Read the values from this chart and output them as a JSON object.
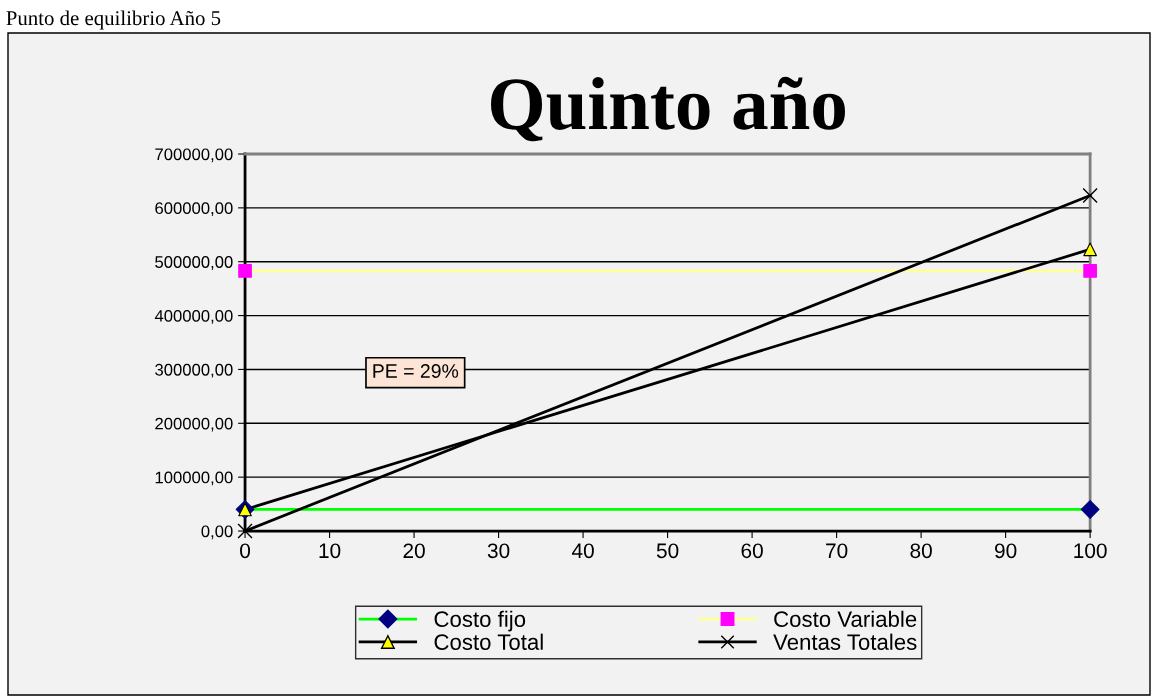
{
  "chart_data": {
    "type": "line",
    "title": "Quinto año",
    "x": [
      0,
      100
    ],
    "series": [
      {
        "name": "Costo fijo",
        "color": "#00ff00",
        "marker": "diamond",
        "colors": [
          "#000080",
          "#000080"
        ],
        "values": [
          40000,
          40000
        ]
      },
      {
        "name": "Costo Variable",
        "color": "#ffff99",
        "marker": "square",
        "colors": [
          "#ff00ff",
          "#ff00ff"
        ],
        "values": [
          483000,
          483000
        ]
      },
      {
        "name": "Costo Total",
        "color": "#000000",
        "marker": "triangle",
        "colors": [
          "#ffff00",
          "#ffff00"
        ],
        "values": [
          40000,
          523000
        ]
      },
      {
        "name": "Ventas Totales",
        "color": "#000000",
        "marker": "cross",
        "colors": [
          "#000000",
          "#000000"
        ],
        "values": [
          0,
          623000
        ]
      }
    ],
    "xlim": [
      0,
      100
    ],
    "xticks": [
      0,
      10,
      20,
      30,
      40,
      50,
      60,
      70,
      80,
      90,
      100
    ],
    "ylim": [
      0,
      700000
    ],
    "yticks": [
      {
        "value": 0,
        "label": "0,00"
      },
      {
        "value": 100000,
        "label": "100000,00"
      },
      {
        "value": 200000,
        "label": "200000,00"
      },
      {
        "value": 300000,
        "label": "300000,00"
      },
      {
        "value": 400000,
        "label": "400000,00"
      },
      {
        "value": 500000,
        "label": "500000,00"
      },
      {
        "value": 600000,
        "label": "600000,00"
      },
      {
        "value": 700000,
        "label": "700000,00"
      }
    ],
    "grid": "y",
    "legend": "bottom",
    "annotations": [
      "Punto de equilibrio Año 5",
      "PE = 29%"
    ]
  }
}
